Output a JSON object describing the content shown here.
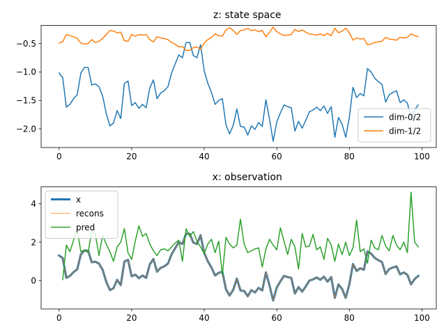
{
  "chart_data": [
    {
      "type": "line",
      "title": "z: state space",
      "xlim": [
        -4.95,
        103.95
      ],
      "ylim": [
        -2.33,
        -0.18
      ],
      "xticks": [
        0,
        20,
        40,
        60,
        80,
        100
      ],
      "xtick_labels": [
        "0",
        "20",
        "40",
        "60",
        "80",
        "100"
      ],
      "yticks": [
        -0.5,
        -1.0,
        -1.5,
        -2.0
      ],
      "ytick_labels": [
        "−0.5",
        "−1.0",
        "−1.5",
        "−2.0"
      ],
      "legend": "lower-right",
      "series": [
        {
          "name": "dim-0/2",
          "color": "#1f77b4",
          "width": 1.5,
          "values": [
            -1.02,
            -1.1,
            -1.62,
            -1.57,
            -1.47,
            -1.4,
            -1.02,
            -0.92,
            -0.92,
            -1.23,
            -1.21,
            -1.26,
            -1.42,
            -1.73,
            -1.95,
            -1.9,
            -1.68,
            -1.82,
            -1.2,
            -1.16,
            -1.59,
            -1.54,
            -1.64,
            -1.57,
            -1.63,
            -1.28,
            -1.14,
            -1.47,
            -1.37,
            -1.33,
            -1.26,
            -1.02,
            -0.86,
            -0.7,
            -0.75,
            -0.48,
            -0.48,
            -0.71,
            -0.75,
            -0.52,
            -0.98,
            -1.2,
            -1.36,
            -1.57,
            -1.5,
            -1.47,
            -1.93,
            -2.09,
            -1.94,
            -1.65,
            -1.96,
            -1.97,
            -2.11,
            -1.95,
            -2.01,
            -1.89,
            -1.96,
            -1.49,
            -1.83,
            -2.22,
            -1.88,
            -1.72,
            -1.58,
            -1.61,
            -1.63,
            -2.04,
            -1.87,
            -1.99,
            -1.85,
            -1.7,
            -1.67,
            -1.62,
            -1.68,
            -1.6,
            -1.73,
            -1.61,
            -2.15,
            -1.8,
            -1.92,
            -2.15,
            -1.8,
            -1.27,
            -1.45,
            -1.38,
            -1.42,
            -0.94,
            -1.0,
            -1.11,
            -1.17,
            -1.22,
            -1.53,
            -1.4,
            -1.36,
            -1.33,
            -1.54,
            -1.49,
            -1.55,
            -1.8,
            -1.66,
            -1.58
          ]
        },
        {
          "name": "dim-1/2",
          "color": "#ff7f0e",
          "width": 1.5,
          "values": [
            -0.49,
            -0.47,
            -0.34,
            -0.36,
            -0.38,
            -0.41,
            -0.49,
            -0.51,
            -0.5,
            -0.43,
            -0.48,
            -0.46,
            -0.41,
            -0.34,
            -0.27,
            -0.28,
            -0.31,
            -0.3,
            -0.45,
            -0.46,
            -0.34,
            -0.37,
            -0.34,
            -0.35,
            -0.34,
            -0.43,
            -0.47,
            -0.38,
            -0.4,
            -0.41,
            -0.43,
            -0.48,
            -0.51,
            -0.56,
            -0.55,
            -0.62,
            -0.62,
            -0.57,
            -0.56,
            -0.6,
            -0.49,
            -0.43,
            -0.39,
            -0.33,
            -0.36,
            -0.37,
            -0.26,
            -0.22,
            -0.27,
            -0.34,
            -0.27,
            -0.26,
            -0.23,
            -0.27,
            -0.26,
            -0.29,
            -0.27,
            -0.38,
            -0.3,
            -0.21,
            -0.29,
            -0.33,
            -0.36,
            -0.35,
            -0.34,
            -0.25,
            -0.29,
            -0.26,
            -0.3,
            -0.33,
            -0.34,
            -0.35,
            -0.33,
            -0.36,
            -0.32,
            -0.36,
            -0.23,
            -0.31,
            -0.28,
            -0.23,
            -0.31,
            -0.44,
            -0.4,
            -0.42,
            -0.41,
            -0.52,
            -0.51,
            -0.48,
            -0.47,
            -0.46,
            -0.39,
            -0.42,
            -0.43,
            -0.44,
            -0.39,
            -0.4,
            -0.39,
            -0.33,
            -0.36,
            -0.38
          ]
        }
      ]
    },
    {
      "type": "line",
      "title": "x: observation",
      "xlim": [
        -4.95,
        103.95
      ],
      "ylim": [
        -1.48,
        4.88
      ],
      "xticks": [
        0,
        20,
        40,
        60,
        80,
        100
      ],
      "xtick_labels": [
        "0",
        "20",
        "40",
        "60",
        "80",
        "100"
      ],
      "yticks": [
        0,
        2,
        4
      ],
      "ytick_labels": [
        "0",
        "2",
        "4"
      ],
      "legend": "upper-left",
      "series": [
        {
          "name": "x",
          "color": "#1f77b4",
          "width": 3,
          "values": [
            1.3,
            1.17,
            0.14,
            0.24,
            0.44,
            0.58,
            1.36,
            1.56,
            1.56,
            0.95,
            0.98,
            0.88,
            0.56,
            -0.06,
            -0.5,
            -0.4,
            0.04,
            -0.24,
            0.99,
            1.08,
            0.22,
            0.31,
            0.12,
            0.26,
            0.14,
            0.84,
            1.12,
            0.46,
            0.66,
            0.74,
            0.88,
            1.36,
            1.68,
            2.0,
            1.9,
            2.44,
            2.44,
            1.98,
            1.9,
            2.36,
            1.44,
            1.0,
            0.68,
            0.26,
            0.4,
            0.46,
            -0.46,
            -0.78,
            -0.48,
            0.1,
            -0.52,
            -0.54,
            -0.82,
            -0.5,
            -0.62,
            -0.38,
            -0.52,
            0.42,
            -0.26,
            -1.04,
            -0.36,
            -0.04,
            0.24,
            0.18,
            0.14,
            -0.68,
            -0.34,
            -0.58,
            -0.3,
            0.0,
            0.06,
            0.16,
            0.04,
            0.2,
            -0.06,
            0.18,
            -0.9,
            -0.2,
            -0.44,
            -0.9,
            -0.2,
            0.86,
            0.5,
            0.64,
            0.56,
            1.52,
            1.4,
            1.18,
            1.06,
            0.96,
            0.34,
            0.6,
            0.68,
            0.74,
            0.32,
            0.42,
            0.3,
            -0.2,
            0.08,
            0.24
          ]
        },
        {
          "name": "recons",
          "color": "#ff7f0e",
          "width": 0.8,
          "values": [
            1.3,
            1.17,
            0.14,
            0.24,
            0.44,
            0.58,
            1.36,
            1.56,
            1.56,
            0.95,
            0.98,
            0.88,
            0.56,
            -0.06,
            -0.5,
            -0.4,
            0.04,
            -0.24,
            0.99,
            1.08,
            0.22,
            0.31,
            0.12,
            0.26,
            0.14,
            0.84,
            1.12,
            0.46,
            0.66,
            0.74,
            0.88,
            1.36,
            1.68,
            2.0,
            1.9,
            2.44,
            2.44,
            1.98,
            1.9,
            2.36,
            1.44,
            1.0,
            0.68,
            0.26,
            0.4,
            0.46,
            -0.46,
            -0.78,
            -0.48,
            0.1,
            -0.52,
            -0.54,
            -0.82,
            -0.5,
            -0.62,
            -0.38,
            -0.52,
            0.42,
            -0.26,
            -1.04,
            -0.36,
            -0.04,
            0.24,
            0.18,
            0.14,
            -0.68,
            -0.34,
            -0.58,
            -0.3,
            0.0,
            0.06,
            0.16,
            0.04,
            0.2,
            -0.06,
            0.18,
            -0.9,
            -0.2,
            -0.44,
            -0.9,
            -0.2,
            0.86,
            0.5,
            0.64,
            0.56,
            1.52,
            1.4,
            1.18,
            1.06,
            0.96,
            0.34,
            0.6,
            0.68,
            0.74,
            0.32,
            0.42,
            0.3,
            -0.2,
            0.08,
            0.24
          ]
        },
        {
          "name": "pred",
          "color": "#2ca02c",
          "width": 1.5,
          "x_start": 1,
          "values": [
            0.05,
            1.85,
            1.5,
            2.1,
            2.65,
            1.5,
            1.6,
            1.45,
            2.6,
            2.4,
            1.3,
            2.35,
            1.9,
            1.5,
            1.0,
            1.75,
            2.0,
            2.7,
            1.45,
            1.1,
            2.05,
            2.85,
            2.3,
            2.45,
            1.9,
            1.55,
            1.3,
            1.6,
            1.65,
            1.55,
            1.75,
            1.95,
            2.1,
            1.0,
            2.7,
            2.3,
            2.55,
            2.05,
            1.75,
            1.4,
            1.9,
            2.15,
            1.45,
            2.05,
            0.3,
            2.25,
            1.9,
            1.7,
            1.85,
            3.2,
            1.9,
            1.45,
            1.55,
            1.65,
            1.7,
            0.7,
            1.65,
            2.15,
            1.85,
            1.6,
            2.75,
            2.05,
            1.35,
            2.15,
            1.75,
            0.6,
            2.45,
            1.75,
            1.8,
            2.4,
            1.6,
            1.75,
            1.1,
            2.2,
            1.85,
            1.0,
            1.9,
            1.35,
            2.0,
            1.3,
            1.7,
            3.15,
            1.5,
            1.65,
            0.9,
            2.1,
            1.7,
            1.6,
            2.35,
            1.8,
            1.55,
            2.35,
            1.85,
            1.6,
            2.0,
            1.45,
            4.6,
            2.0,
            1.75
          ]
        }
      ]
    }
  ]
}
